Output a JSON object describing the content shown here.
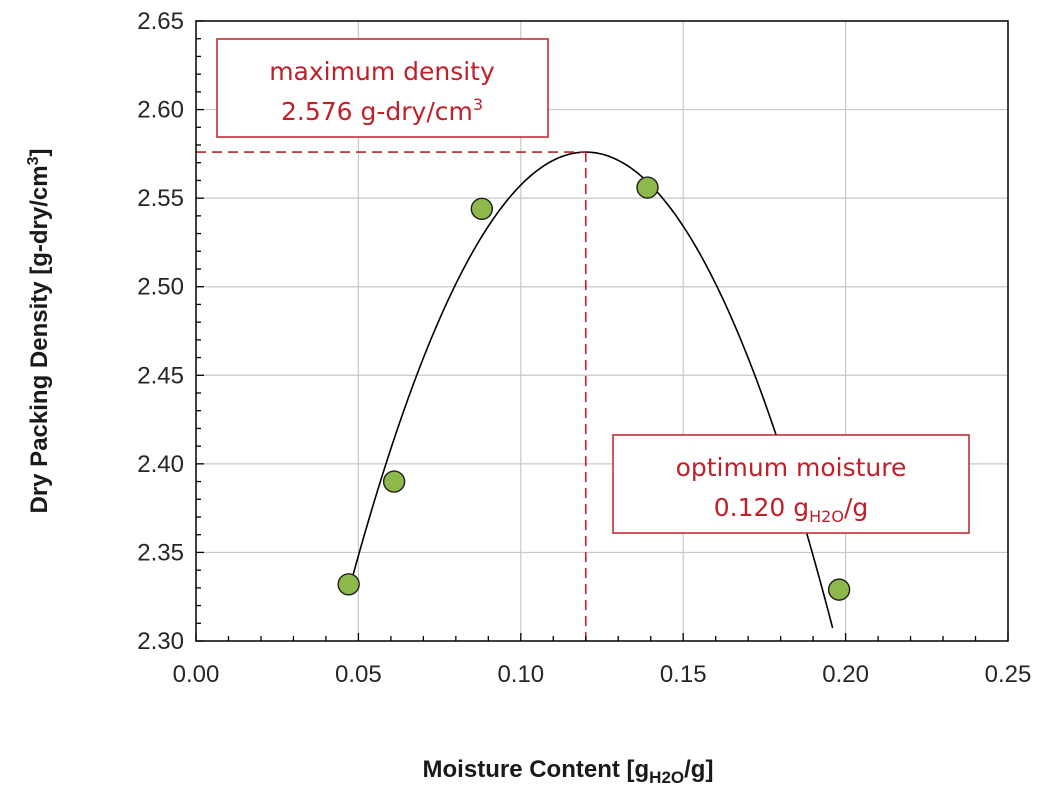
{
  "chart_data": {
    "type": "scatter",
    "xlabel": {
      "main": "Moisture Content  [g",
      "sub": "H2O",
      "tail": "/g]"
    },
    "ylabel": {
      "main": "Dry Packing Density  [g-dry/cm",
      "sup": "3",
      "tail": "]"
    },
    "xlim": [
      0.0,
      0.25
    ],
    "ylim": [
      2.3,
      2.65
    ],
    "xticks": [
      "0.00",
      "0.05",
      "0.10",
      "0.15",
      "0.20",
      "0.25"
    ],
    "yticks": [
      "2.30",
      "2.35",
      "2.40",
      "2.45",
      "2.50",
      "2.55",
      "2.60",
      "2.65"
    ],
    "grid": true,
    "points": [
      {
        "x": 0.047,
        "y": 2.332
      },
      {
        "x": 0.061,
        "y": 2.39
      },
      {
        "x": 0.088,
        "y": 2.544
      },
      {
        "x": 0.139,
        "y": 2.556
      },
      {
        "x": 0.198,
        "y": 2.329
      }
    ],
    "fit_curve": {
      "type": "quadratic",
      "vertex_x": 0.12,
      "vertex_y": 2.576,
      "x_start": 0.048,
      "x_end": 0.196,
      "a": -46.5
    },
    "annotations": {
      "max_density": {
        "line1": "maximum density",
        "line2_main": "2.576 g-dry/cm",
        "line2_sup": "3",
        "value_y": 2.576
      },
      "optimum_moisture": {
        "line1": "optimum  moisture",
        "line2_main": "0.120 g",
        "line2_sub": "H2O",
        "line2_tail": "/g",
        "value_x": 0.12
      }
    },
    "colors": {
      "marker_fill": "#8db84a",
      "marker_stroke": "#1f1f1f",
      "curve": "#000000",
      "annotation": "#c0202a",
      "grid": "#c8c8c8",
      "axis": "#000000"
    }
  }
}
